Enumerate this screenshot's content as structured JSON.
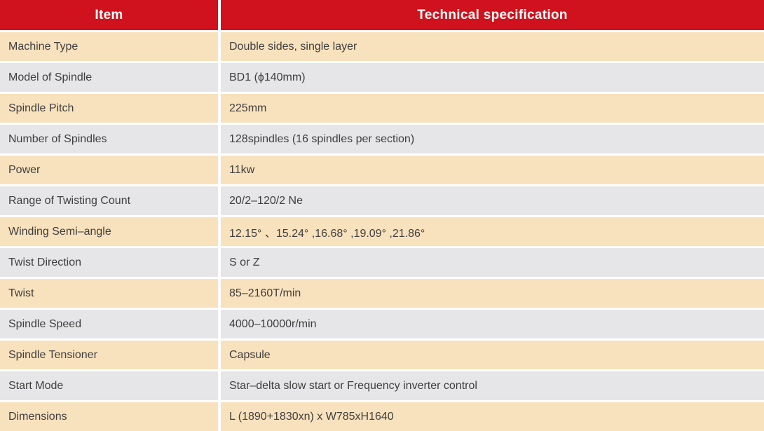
{
  "table": {
    "columns": [
      "Item",
      "Technical specification"
    ],
    "rows": [
      {
        "item": "Machine Type",
        "spec": "Double sides, single layer"
      },
      {
        "item": "Model of Spindle",
        "spec": "BD1 (ϕ140mm)"
      },
      {
        "item": "Spindle Pitch",
        "spec": "225mm"
      },
      {
        "item": "Number of Spindles",
        "spec": "128spindles (16 spindles per section)"
      },
      {
        "item": "Power",
        "spec": "11kw"
      },
      {
        "item": "Range of Twisting Count",
        "spec": "20/2–120/2 Ne"
      },
      {
        "item": "Winding Semi–angle",
        "spec": "12.15° 、15.24° ,16.68° ,19.09° ,21.86°"
      },
      {
        "item": "Twist Direction",
        "spec": "S or Z"
      },
      {
        "item": "Twist",
        "spec": "85–2160T/min"
      },
      {
        "item": "Spindle Speed",
        "spec": "4000–10000r/min"
      },
      {
        "item": "Spindle Tensioner",
        "spec": "Capsule"
      },
      {
        "item": "Start Mode",
        "spec": "Star–delta slow start or Frequency inverter control"
      },
      {
        "item": "Dimensions",
        "spec": "L (1890+1830xn) x W785xH1640"
      }
    ]
  },
  "theme": {
    "header_bg": "#cf121d",
    "header_text": "#ffffff",
    "row_peach": "#f8e1bd",
    "row_gray": "#e6e6e8",
    "body_text": "#3e3e3e",
    "grid_line": "#ffffff"
  }
}
